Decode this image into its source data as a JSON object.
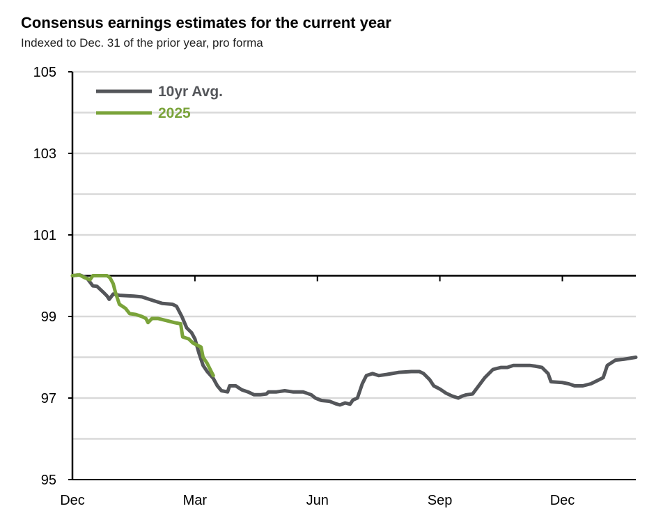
{
  "title": "Consensus earnings estimates for the current year",
  "subtitle": "Indexed to Dec. 31 of the prior year, pro forma",
  "colors": {
    "avg": "#54565a",
    "current": "#7aa33a",
    "grid": "#d9d9d9",
    "axis": "#000000"
  },
  "chart_data": {
    "type": "line",
    "title": "Consensus earnings estimates for the current year",
    "subtitle": "Indexed to Dec. 31 of the prior year, pro forma",
    "xlabel": "",
    "ylabel": "",
    "x_unit": "months since Dec. 31 of the prior year",
    "xlim": [
      0,
      13.8
    ],
    "ylim": [
      95,
      105
    ],
    "baseline": 100,
    "yticks": [
      105,
      103,
      101,
      99,
      97,
      95
    ],
    "xticks": [
      {
        "x": 0,
        "label": "Dec"
      },
      {
        "x": 3,
        "label": "Mar"
      },
      {
        "x": 6,
        "label": "Jun"
      },
      {
        "x": 9,
        "label": "Sep"
      },
      {
        "x": 12,
        "label": "Dec"
      }
    ],
    "grid": true,
    "legend_position": "top-left",
    "series": [
      {
        "name": "10yr Avg.",
        "color": "#54565a",
        "points": [
          [
            0,
            100
          ],
          [
            0.17,
            100.02
          ],
          [
            0.35,
            99.95
          ],
          [
            0.5,
            99.75
          ],
          [
            0.6,
            99.74
          ],
          [
            0.75,
            99.6
          ],
          [
            0.85,
            99.5
          ],
          [
            0.9,
            99.42
          ],
          [
            1.0,
            99.55
          ],
          [
            1.15,
            99.52
          ],
          [
            1.5,
            99.5
          ],
          [
            1.7,
            99.48
          ],
          [
            1.95,
            99.4
          ],
          [
            2.2,
            99.32
          ],
          [
            2.45,
            99.3
          ],
          [
            2.55,
            99.25
          ],
          [
            2.68,
            99.0
          ],
          [
            2.8,
            98.72
          ],
          [
            2.92,
            98.6
          ],
          [
            3.0,
            98.45
          ],
          [
            3.1,
            98.1
          ],
          [
            3.2,
            97.8
          ],
          [
            3.3,
            97.65
          ],
          [
            3.45,
            97.48
          ],
          [
            3.55,
            97.3
          ],
          [
            3.65,
            97.18
          ],
          [
            3.8,
            97.15
          ],
          [
            3.85,
            97.3
          ],
          [
            4.0,
            97.3
          ],
          [
            4.15,
            97.2
          ],
          [
            4.3,
            97.15
          ],
          [
            4.45,
            97.08
          ],
          [
            4.6,
            97.08
          ],
          [
            4.75,
            97.1
          ],
          [
            4.8,
            97.15
          ],
          [
            5.0,
            97.15
          ],
          [
            5.2,
            97.18
          ],
          [
            5.4,
            97.15
          ],
          [
            5.65,
            97.15
          ],
          [
            5.85,
            97.08
          ],
          [
            5.95,
            97.0
          ],
          [
            6.1,
            96.94
          ],
          [
            6.3,
            96.92
          ],
          [
            6.45,
            96.86
          ],
          [
            6.55,
            96.83
          ],
          [
            6.68,
            96.88
          ],
          [
            6.8,
            96.85
          ],
          [
            6.87,
            96.95
          ],
          [
            6.98,
            97.0
          ],
          [
            7.1,
            97.35
          ],
          [
            7.2,
            97.55
          ],
          [
            7.35,
            97.6
          ],
          [
            7.5,
            97.55
          ],
          [
            7.7,
            97.58
          ],
          [
            8.0,
            97.63
          ],
          [
            8.3,
            97.65
          ],
          [
            8.5,
            97.65
          ],
          [
            8.6,
            97.6
          ],
          [
            8.75,
            97.45
          ],
          [
            8.85,
            97.3
          ],
          [
            9.0,
            97.22
          ],
          [
            9.15,
            97.12
          ],
          [
            9.3,
            97.05
          ],
          [
            9.45,
            97.0
          ],
          [
            9.55,
            97.05
          ],
          [
            9.65,
            97.08
          ],
          [
            9.8,
            97.1
          ],
          [
            9.95,
            97.3
          ],
          [
            10.1,
            97.5
          ],
          [
            10.3,
            97.7
          ],
          [
            10.5,
            97.75
          ],
          [
            10.65,
            97.75
          ],
          [
            10.8,
            97.8
          ],
          [
            11.0,
            97.8
          ],
          [
            11.2,
            97.8
          ],
          [
            11.35,
            97.78
          ],
          [
            11.5,
            97.75
          ],
          [
            11.65,
            97.6
          ],
          [
            11.72,
            97.4
          ],
          [
            12.0,
            97.38
          ],
          [
            12.15,
            97.35
          ],
          [
            12.3,
            97.3
          ],
          [
            12.5,
            97.3
          ],
          [
            12.7,
            97.35
          ],
          [
            12.9,
            97.45
          ],
          [
            13.0,
            97.5
          ],
          [
            13.1,
            97.8
          ],
          [
            13.3,
            97.93
          ],
          [
            13.5,
            97.95
          ],
          [
            13.8,
            98.0
          ]
        ]
      },
      {
        "name": "2025",
        "color": "#7aa33a",
        "points": [
          [
            0,
            100
          ],
          [
            0.17,
            100.02
          ],
          [
            0.3,
            99.95
          ],
          [
            0.43,
            99.9
          ],
          [
            0.5,
            100.0
          ],
          [
            0.65,
            100.0
          ],
          [
            0.75,
            100.0
          ],
          [
            0.85,
            100.0
          ],
          [
            0.92,
            99.95
          ],
          [
            1.0,
            99.8
          ],
          [
            1.05,
            99.6
          ],
          [
            1.15,
            99.3
          ],
          [
            1.3,
            99.2
          ],
          [
            1.4,
            99.07
          ],
          [
            1.55,
            99.05
          ],
          [
            1.7,
            99.0
          ],
          [
            1.8,
            98.95
          ],
          [
            1.85,
            98.85
          ],
          [
            1.95,
            98.95
          ],
          [
            2.1,
            98.95
          ],
          [
            2.3,
            98.9
          ],
          [
            2.5,
            98.85
          ],
          [
            2.65,
            98.82
          ],
          [
            2.7,
            98.5
          ],
          [
            2.85,
            98.45
          ],
          [
            2.95,
            98.35
          ],
          [
            3.05,
            98.3
          ],
          [
            3.15,
            98.25
          ],
          [
            3.2,
            98.0
          ],
          [
            3.3,
            97.85
          ],
          [
            3.4,
            97.65
          ],
          [
            3.45,
            97.55
          ]
        ]
      }
    ]
  }
}
